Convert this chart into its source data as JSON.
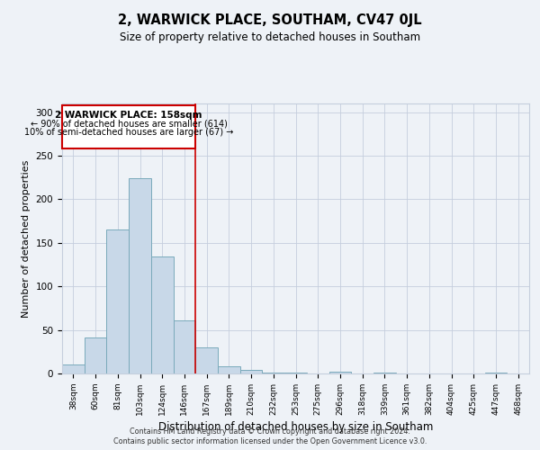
{
  "title": "2, WARWICK PLACE, SOUTHAM, CV47 0JL",
  "subtitle": "Size of property relative to detached houses in Southam",
  "xlabel": "Distribution of detached houses by size in Southam",
  "ylabel": "Number of detached properties",
  "bar_labels": [
    "38sqm",
    "60sqm",
    "81sqm",
    "103sqm",
    "124sqm",
    "146sqm",
    "167sqm",
    "189sqm",
    "210sqm",
    "232sqm",
    "253sqm",
    "275sqm",
    "296sqm",
    "318sqm",
    "339sqm",
    "361sqm",
    "382sqm",
    "404sqm",
    "425sqm",
    "447sqm",
    "468sqm"
  ],
  "bar_values": [
    10,
    41,
    165,
    224,
    134,
    61,
    30,
    8,
    4,
    1,
    1,
    0,
    2,
    0,
    1,
    0,
    0,
    0,
    0,
    1,
    0
  ],
  "bar_color": "#c8d8e8",
  "bar_edge_color": "#7aaabb",
  "vline_x": 5.5,
  "vline_color": "#cc0000",
  "annotation_title": "2 WARWICK PLACE: 158sqm",
  "annotation_line1": "← 90% of detached houses are smaller (614)",
  "annotation_line2": "10% of semi-detached houses are larger (67) →",
  "annotation_box_edge_color": "#cc0000",
  "ylim": [
    0,
    310
  ],
  "yticks": [
    0,
    50,
    100,
    150,
    200,
    250,
    300
  ],
  "footer1": "Contains HM Land Registry data © Crown copyright and database right 2024.",
  "footer2": "Contains public sector information licensed under the Open Government Licence v3.0.",
  "bg_color": "#eef2f7"
}
